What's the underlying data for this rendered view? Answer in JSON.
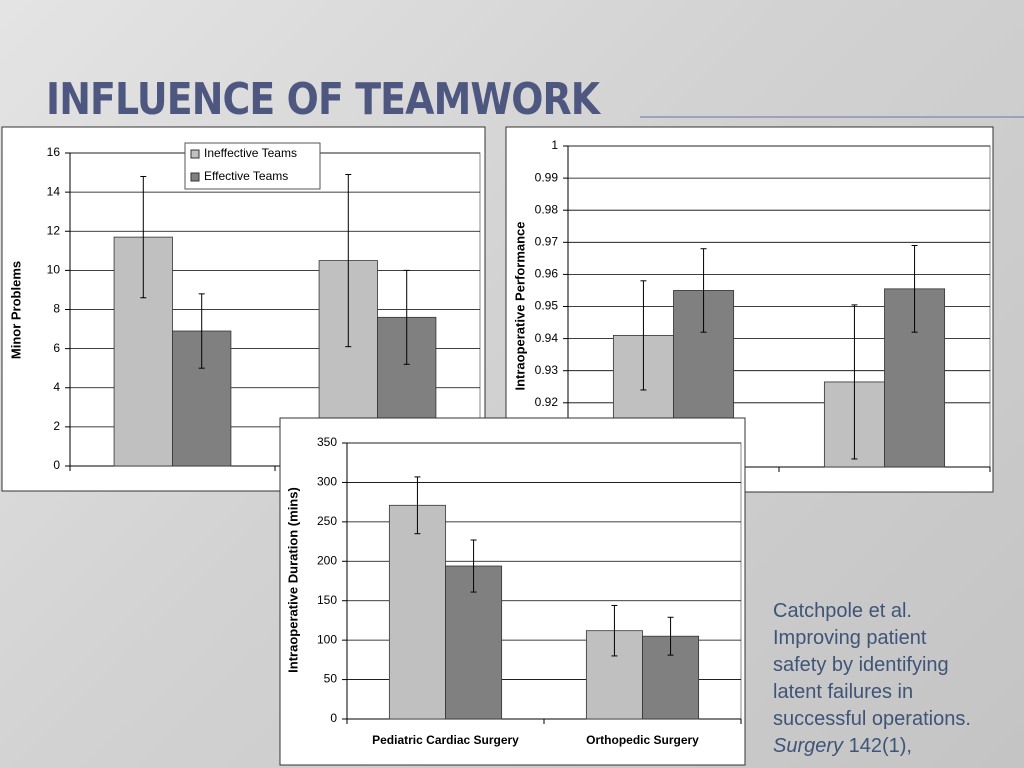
{
  "slide": {
    "title": "INFLUENCE OF TEAMWORK"
  },
  "citation": {
    "lines": [
      "Catchpole et al.",
      "Improving patient",
      "safety by identifying",
      "latent failures in",
      "successful operations."
    ],
    "journal": "Surgery",
    "volume": "142(1),"
  },
  "chart_data": [
    {
      "type": "bar",
      "y_label": "Minor Problems",
      "categories": [
        null,
        null
      ],
      "series": [
        {
          "name": "Ineffective Teams",
          "color": "#c0c0c0",
          "values": [
            11.7,
            10.5
          ],
          "errors": [
            3.1,
            4.4
          ]
        },
        {
          "name": "Effective Teams",
          "color": "#808080",
          "values": [
            6.9,
            7.6
          ],
          "errors": [
            1.9,
            2.4
          ]
        }
      ],
      "ylim": [
        0,
        16
      ],
      "yticks": [
        0,
        2,
        4,
        6,
        8,
        10,
        12,
        14,
        16
      ],
      "grid": true,
      "legend": "upper center"
    },
    {
      "type": "bar",
      "y_label": "Intraoperative Performance",
      "categories": [
        null,
        null
      ],
      "series": [
        {
          "color": "#c0c0c0",
          "values": [
            0.941,
            0.9265
          ],
          "errors": [
            0.017,
            0.024
          ]
        },
        {
          "color": "#808080",
          "values": [
            0.955,
            0.9555
          ],
          "errors": [
            0.013,
            0.0135
          ]
        }
      ],
      "ylim": [
        0.9,
        1
      ],
      "yticks": [
        0.92,
        0.93,
        0.94,
        0.95,
        0.96,
        0.97,
        0.98,
        0.99,
        1
      ],
      "grid": true
    },
    {
      "type": "bar",
      "y_label": "Intraoperative Duration (mins)",
      "categories": [
        "Pediatric Cardiac Surgery",
        "Orthopedic Surgery"
      ],
      "series": [
        {
          "color": "#c0c0c0",
          "values": [
            271,
            112
          ],
          "errors": [
            36,
            32
          ]
        },
        {
          "color": "#808080",
          "values": [
            194,
            105
          ],
          "errors": [
            33,
            24
          ]
        }
      ],
      "ylim": [
        0,
        350
      ],
      "yticks": [
        0,
        50,
        100,
        150,
        200,
        250,
        300,
        350
      ],
      "grid": true
    }
  ]
}
